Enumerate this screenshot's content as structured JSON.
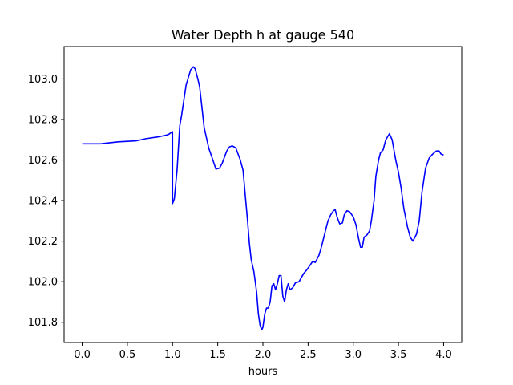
{
  "chart_data": {
    "type": "line",
    "title": "Water Depth h at gauge 540",
    "xlabel": "hours",
    "ylabel": "",
    "xlim": [
      -0.2,
      4.2
    ],
    "ylim": [
      101.7,
      103.16
    ],
    "xticks": [
      0.0,
      0.5,
      1.0,
      1.5,
      2.0,
      2.5,
      3.0,
      3.5,
      4.0
    ],
    "xtick_labels": [
      "0.0",
      "0.5",
      "1.0",
      "1.5",
      "2.0",
      "2.5",
      "3.0",
      "3.5",
      "4.0"
    ],
    "yticks": [
      101.8,
      102.0,
      102.2,
      102.4,
      102.6,
      102.8,
      103.0
    ],
    "ytick_labels": [
      "101.8",
      "102.0",
      "102.2",
      "102.4",
      "102.6",
      "102.8",
      "103.0"
    ],
    "grid": false,
    "series": [
      {
        "color": "#0000ff",
        "x": [
          0.0,
          0.2,
          0.4,
          0.6,
          0.7,
          0.85,
          0.95,
          1.0,
          1.0,
          1.02,
          1.05,
          1.08,
          1.1,
          1.15,
          1.2,
          1.23,
          1.25,
          1.28,
          1.3,
          1.35,
          1.4,
          1.45,
          1.48,
          1.52,
          1.55,
          1.6,
          1.63,
          1.66,
          1.7,
          1.75,
          1.78,
          1.8,
          1.83,
          1.85,
          1.87,
          1.9,
          1.93,
          1.95,
          1.97,
          1.99,
          2.0,
          2.02,
          2.04,
          2.06,
          2.08,
          2.1,
          2.12,
          2.14,
          2.16,
          2.18,
          2.2,
          2.22,
          2.24,
          2.26,
          2.28,
          2.3,
          2.33,
          2.36,
          2.4,
          2.45,
          2.48,
          2.52,
          2.55,
          2.58,
          2.62,
          2.65,
          2.68,
          2.72,
          2.75,
          2.78,
          2.8,
          2.82,
          2.85,
          2.88,
          2.9,
          2.93,
          2.96,
          3.0,
          3.03,
          3.06,
          3.08,
          3.1,
          3.12,
          3.15,
          3.18,
          3.2,
          3.23,
          3.25,
          3.28,
          3.3,
          3.33,
          3.36,
          3.4,
          3.43,
          3.45,
          3.47,
          3.5,
          3.53,
          3.56,
          3.6,
          3.63,
          3.66,
          3.7,
          3.73,
          3.76,
          3.8,
          3.84,
          3.88,
          3.92,
          3.95,
          3.97,
          4.0
        ],
        "y": [
          102.68,
          102.68,
          102.69,
          102.695,
          102.705,
          102.715,
          102.725,
          102.74,
          102.385,
          102.41,
          102.55,
          102.77,
          102.82,
          102.97,
          103.045,
          103.06,
          103.05,
          103.0,
          102.96,
          102.76,
          102.66,
          102.595,
          102.555,
          102.56,
          102.585,
          102.645,
          102.665,
          102.67,
          102.66,
          102.6,
          102.55,
          102.45,
          102.3,
          102.19,
          102.11,
          102.05,
          101.95,
          101.84,
          101.78,
          101.765,
          101.775,
          101.84,
          101.87,
          101.87,
          101.9,
          101.98,
          101.99,
          101.96,
          101.99,
          102.03,
          102.03,
          101.93,
          101.9,
          101.96,
          101.99,
          101.96,
          101.97,
          101.995,
          102.0,
          102.04,
          102.055,
          102.08,
          102.1,
          102.095,
          102.13,
          102.175,
          102.23,
          102.3,
          102.33,
          102.35,
          102.355,
          102.32,
          102.285,
          102.29,
          102.33,
          102.35,
          102.345,
          102.32,
          102.28,
          102.21,
          102.17,
          102.17,
          102.22,
          102.23,
          102.25,
          102.3,
          102.4,
          102.52,
          102.6,
          102.635,
          102.65,
          102.7,
          102.73,
          102.7,
          102.65,
          102.6,
          102.54,
          102.46,
          102.36,
          102.27,
          102.22,
          102.2,
          102.235,
          102.3,
          102.44,
          102.56,
          102.61,
          102.63,
          102.645,
          102.645,
          102.63,
          102.625
        ]
      }
    ]
  }
}
